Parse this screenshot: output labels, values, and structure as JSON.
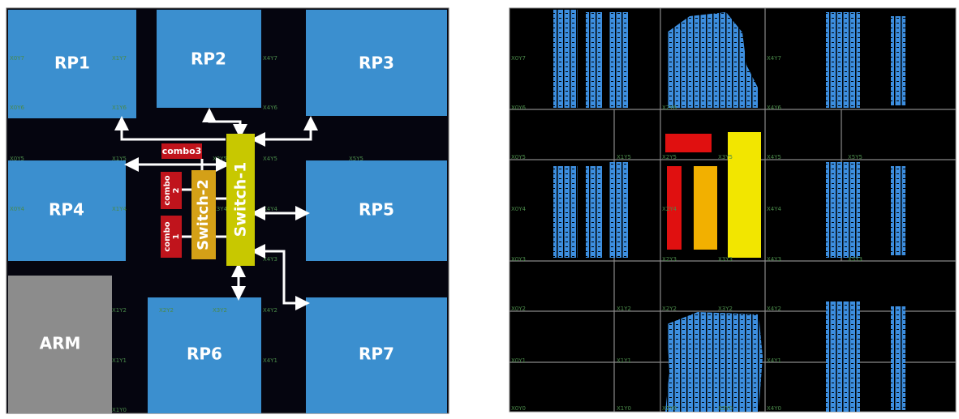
{
  "left_panel": {
    "regions": [
      "RP1",
      "RP2",
      "RP3",
      "RP4",
      "RP5",
      "RP6",
      "RP7"
    ],
    "arm": "ARM",
    "switches": [
      "Switch-1",
      "Switch-2"
    ],
    "combos": [
      {
        "lines": [
          "combo3"
        ]
      },
      {
        "lines": [
          "combo",
          "2"
        ]
      },
      {
        "lines": [
          "combo",
          "1"
        ]
      }
    ],
    "grid_labels": [
      "X0Y7",
      "X1Y7",
      "X4Y7",
      "X0Y6",
      "X1Y6",
      "X4Y6",
      "X0Y5",
      "X1Y5",
      "X3Y5",
      "X4Y5",
      "X5Y5",
      "X0Y4",
      "X1Y4",
      "X3Y4",
      "X4Y4",
      "X4Y3",
      "X1Y2",
      "X2Y2",
      "X3Y2",
      "X4Y2",
      "X1Y1",
      "X4Y1",
      "X1Y0"
    ]
  },
  "right_panel": {
    "grid_labels": [
      "X0Y7",
      "X4Y7",
      "X0Y6",
      "X2Y6",
      "X4Y6",
      "X0Y5",
      "X1Y5",
      "X2Y5",
      "X3Y5",
      "X4Y5",
      "X5Y5",
      "X0Y4",
      "X2Y4",
      "X4Y4",
      "X0Y3",
      "X2Y3",
      "X3Y3",
      "X4Y3",
      "X5Y3",
      "X0Y2",
      "X1Y2",
      "X2Y2",
      "X3Y2",
      "X4Y2",
      "X0Y1",
      "X1Y1",
      "X4Y1",
      "X0Y0",
      "X1Y0",
      "X2Y0",
      "X3Y0",
      "X4Y0"
    ]
  }
}
